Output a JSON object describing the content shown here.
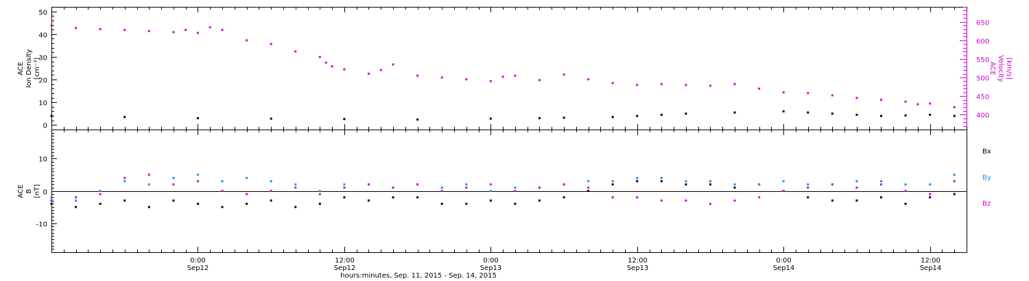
{
  "colors": {
    "black": "#000000",
    "magenta": "#d100d1",
    "blue": "#1a8cf0"
  },
  "chart_data": [
    {
      "type": "scatter",
      "title": "",
      "ylabel_lines": [
        "ACE",
        "Ion Density",
        "[cm⁻³]"
      ],
      "ylim": [
        -2,
        52
      ],
      "yticks": [
        "0",
        "10",
        "20",
        "30",
        "40",
        "50"
      ],
      "y2label_lines": [
        "ACE",
        "Velocity",
        "[km/s]"
      ],
      "y2lim": [
        360,
        690
      ],
      "y2ticks": [
        "400",
        "450",
        "500",
        "550",
        "600",
        "650"
      ],
      "xlim_hours": [
        0,
        75
      ],
      "series": [
        {
          "axis": "right",
          "color": "magenta",
          "x": [
            0,
            2,
            4,
            6,
            8,
            10,
            11,
            12,
            13,
            14,
            16,
            18,
            20,
            22,
            22.5,
            23,
            24,
            26,
            27,
            28,
            30,
            32,
            34,
            36,
            37,
            38,
            40,
            42,
            44,
            46,
            48,
            50,
            52,
            54,
            56,
            58,
            60,
            62,
            64,
            66,
            68,
            70,
            71,
            72,
            74
          ],
          "values": [
            640,
            633,
            630,
            628,
            625,
            622,
            628,
            620,
            635,
            628,
            600,
            590,
            570,
            555,
            540,
            530,
            522,
            510,
            520,
            535,
            505,
            500,
            495,
            490,
            502,
            505,
            493,
            508,
            495,
            485,
            480,
            482,
            480,
            478,
            482,
            470,
            460,
            458,
            452,
            445,
            440,
            435,
            428,
            430,
            420
          ]
        },
        {
          "axis": "left",
          "color": "black",
          "x": [
            0,
            6,
            12,
            18,
            24,
            30,
            36,
            40,
            42,
            46,
            48,
            50,
            52,
            56,
            60,
            62,
            64,
            66,
            68,
            70,
            72,
            74
          ],
          "values": [
            4,
            3.5,
            3,
            2.8,
            2.6,
            2.4,
            2.8,
            3,
            3.2,
            3.5,
            4,
            4.5,
            5,
            5.5,
            6,
            5.5,
            5,
            4.5,
            4,
            4.2,
            4.5,
            4
          ]
        }
      ]
    },
    {
      "type": "scatter",
      "title": "",
      "ylabel_lines": [
        "ACE",
        "B",
        "[nT]"
      ],
      "ylim": [
        -19,
        19
      ],
      "yticks": [
        "-10",
        "0",
        "10"
      ],
      "xlim_hours": [
        0,
        75
      ],
      "xtick_times": [
        "0:00",
        "12:00",
        "0:00",
        "12:00",
        "0:00",
        "12:00"
      ],
      "xtick_dates": [
        "Sep12",
        "Sep12",
        "Sep13",
        "Sep13",
        "Sep14",
        "Sep14"
      ],
      "xlabel": "hours:minutes, Sep. 11, 2015 - Sep. 14, 2015",
      "legend": [
        "Bx",
        "By",
        "Bz"
      ],
      "series": [
        {
          "name": "Bx",
          "color": "black",
          "x": [
            0,
            2,
            4,
            6,
            8,
            10,
            12,
            14,
            16,
            18,
            20,
            22,
            24,
            26,
            28,
            30,
            32,
            34,
            36,
            38,
            40,
            42,
            44,
            46,
            48,
            50,
            52,
            54,
            56,
            58,
            60,
            62,
            64,
            66,
            68,
            70,
            72,
            74
          ],
          "values": [
            -4,
            -5,
            -4,
            -3,
            -5,
            -3,
            -4,
            -5,
            -4,
            -3,
            -5,
            -4,
            -2,
            -3,
            -2,
            -2,
            -4,
            -4,
            -3,
            -4,
            -3,
            -2,
            0,
            2,
            3,
            3,
            2,
            2,
            1,
            2,
            0,
            -2,
            -3,
            -3,
            -2,
            -4,
            -2,
            -1
          ]
        },
        {
          "name": "By",
          "color": "blue",
          "x": [
            0,
            2,
            4,
            6,
            8,
            10,
            12,
            14,
            16,
            18,
            20,
            22,
            24,
            26,
            28,
            30,
            32,
            34,
            36,
            38,
            40,
            42,
            44,
            46,
            48,
            50,
            52,
            54,
            56,
            58,
            60,
            62,
            64,
            66,
            68,
            70,
            72,
            74
          ],
          "values": [
            -2,
            -3,
            0,
            3,
            2,
            4,
            5,
            3,
            4,
            3,
            2,
            0,
            2,
            2,
            1,
            2,
            1,
            2,
            0,
            1,
            1,
            2,
            3,
            3,
            4,
            4,
            3,
            3,
            2,
            2,
            3,
            2,
            2,
            3,
            3,
            2,
            2,
            5
          ]
        },
        {
          "name": "Bz",
          "color": "magenta",
          "x": [
            0,
            2,
            4,
            6,
            8,
            10,
            12,
            14,
            16,
            18,
            20,
            22,
            24,
            26,
            28,
            30,
            32,
            34,
            36,
            38,
            40,
            42,
            44,
            46,
            48,
            50,
            52,
            54,
            56,
            58,
            60,
            62,
            64,
            66,
            68,
            70,
            72,
            74
          ],
          "values": [
            -3,
            -2,
            -1,
            4,
            5,
            2,
            3,
            0,
            -1,
            0,
            1,
            -1,
            1,
            2,
            1,
            2,
            0,
            1,
            2,
            0,
            1,
            2,
            1,
            -2,
            -2,
            -3,
            -3,
            -4,
            -3,
            -2,
            0,
            1,
            2,
            1,
            2,
            0,
            -1,
            3
          ]
        }
      ]
    }
  ]
}
